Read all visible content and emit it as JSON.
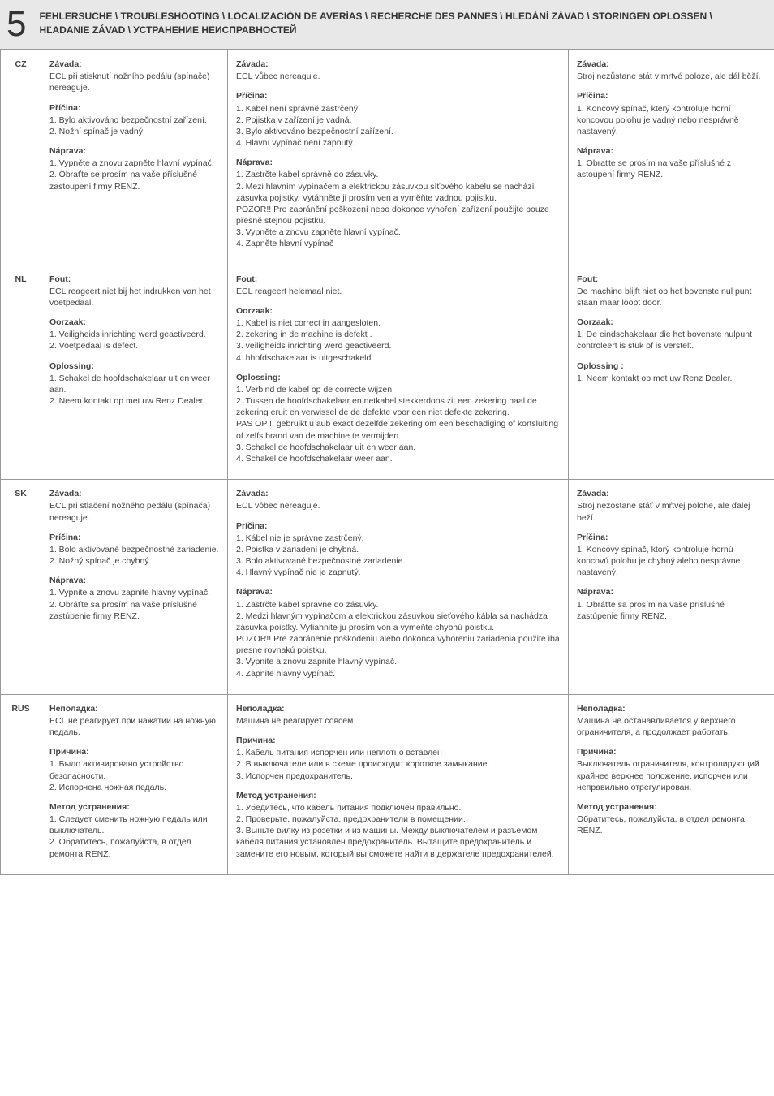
{
  "header": {
    "number": "5",
    "title": "FEHLERSUCHE   \\   TROUBLESHOOTING   \\   LOCALIZACIÓN DE AVERÍAS   \\   RECHERCHE DES PANNES   \\   HLEDÁNÍ ZÁVAD   \\   STORINGEN OPLOSSEN   \\   HĽADANIE ZÁVAD   \\   УСТРАНЕНИЕ НЕИСПРАВНОСТЕЙ"
  },
  "rows": [
    {
      "lang": "CZ",
      "col1": [
        {
          "title": "Závada:",
          "body": "ECL při stisknutí nožního pedálu (spínače) nereaguje."
        },
        {
          "title": "Příčina:",
          "body": "1. Bylo aktivováno bezpečnostní zařízení.\n2. Nožní spínač je vadný."
        },
        {
          "title": "Náprava:",
          "body": "1. Vypněte a znovu zapněte hlavní vypínač.\n2. Obraťte se prosím na vaše příslušné zastoupení firmy RENZ."
        }
      ],
      "col2": [
        {
          "title": "Závada:",
          "body": "ECL vůbec nereaguje."
        },
        {
          "title": "Příčina:",
          "body": "1. Kabel není správně zastrčený.\n2. Pojistka v zařízení je vadná.\n3. Bylo aktivováno bezpečnostní zařízení.\n4. Hlavní vypínač není zapnutý."
        },
        {
          "title": "Náprava:",
          "body": "1. Zastrčte kabel správně do zásuvky.\n2. Mezi hlavním vypínačem a elektrickou zásuvkou síťového kabelu se nachází zásuvka pojistky. Vytáhněte ji prosím ven a vyměňte vadnou pojistku.\nPOZOR!! Pro zabránění poškození nebo dokonce vyhoření zařízení použijte pouze přesně stejnou pojistku.\n3. Vypněte a znovu zapněte hlavní vypínač.\n4. Zapněte hlavní vypínač"
        }
      ],
      "col3": [
        {
          "title": "Závada:",
          "body": "Stroj nezůstane stát v mrtvé poloze, ale dál běží."
        },
        {
          "title": "Příčina:",
          "body": "1. Koncový spínač, který kontroluje horní koncovou polohu je vadný nebo nesprávně nastavený."
        },
        {
          "title": "Náprava:",
          "body": "1. Obraťte se prosím na vaše příslušné z astoupení firmy RENZ."
        }
      ]
    },
    {
      "lang": "NL",
      "col1": [
        {
          "title": "Fout:",
          "body": "ECL reageert niet bij het indrukken van het voetpedaal."
        },
        {
          "title": "Oorzaak:",
          "body": "1. Veiligheids inrichting werd geactiveerd.\n2. Voetpedaal is defect."
        },
        {
          "title": "Oplossing:",
          "body": "1. Schakel de hoofdschakelaar uit en weer aan.\n2. Neem kontakt op met uw Renz Dealer."
        }
      ],
      "col2": [
        {
          "title": "Fout:",
          "body": "ECL reageert helemaal niet."
        },
        {
          "title": "Oorzaak:",
          "body": "1. Kabel is niet correct in aangesloten.\n2. zekering in de machine is defekt .\n3. veiligheids inrichting werd geactiveerd.\n4. hhofdschakelaar is uitgeschakeld."
        },
        {
          "title": "Oplossing:",
          "body": "1. Verbind de kabel op de correcte wijzen.\n2. Tussen de hoofdschakelaar en netkabel stekkerdoos zit een zekering haal de zekering eruit en verwissel de de defekte voor een niet defekte zekering.\nPAS OP !! gebruikt u aub exact dezelfde zekering om een beschadiging of kortsluiting of zelfs brand van de machine te vermijden.\n3. Schakel de hoofdschakelaar uit en weer aan.\n4. Schakel de hoofdschakelaar weer aan."
        }
      ],
      "col3": [
        {
          "title": "Fout:",
          "body": "De machine blijft niet op het bovenste nul punt staan maar loopt door."
        },
        {
          "title": "Oorzaak:",
          "body": "1. De eindschakelaar die het bovenste nulpunt controleert is stuk of is verstelt."
        },
        {
          "title": "Oplossing :",
          "body": "1. Neem kontakt op met uw Renz Dealer."
        }
      ]
    },
    {
      "lang": "SK",
      "col1": [
        {
          "title": "Závada:",
          "body": "ECL pri stlačení nožného pedálu (spínača) nereaguje."
        },
        {
          "title": "Príčina:",
          "body": "1. Bolo aktivované bezpečnostné zariadenie.\n2. Nožný spínač je chybný."
        },
        {
          "title": "Náprava:",
          "body": "1. Vypnite a znovu zapnite hlavný vypínač.\n2. Obráťte sa prosím na vaše príslušné zastúpenie firmy RENZ."
        }
      ],
      "col2": [
        {
          "title": "Závada:",
          "body": "ECL vôbec nereaguje."
        },
        {
          "title": "Príčina:",
          "body": "1. Kábel nie je správne zastrčený.\n2. Poistka v zariadení je chybná.\n3. Bolo aktivované bezpečnostné zariadenie.\n4. Hlavný vypínač nie je zapnutý."
        },
        {
          "title": "Náprava:",
          "body": "1. Zastrčte kábel správne do zásuvky.\n2. Medzi hlavným vypínačom a elektrickou zásuvkou sieťového kábla sa nachádza zásuvka poistky. Vytiahnite ju prosím von a vymeňte chybnú poistku.\nPOZOR!! Pre zabránenie poškodeniu alebo dokonca vyhoreniu zariadenia použite iba presne rovnakú poistku.\n3. Vypnite a znovu zapnite hlavný vypínač.\n4. Zapnite hlavný vypínač."
        }
      ],
      "col3": [
        {
          "title": "Závada:",
          "body": "Stroj nezostane stáť v mŕtvej polohe, ale ďalej beží."
        },
        {
          "title": "Príčina:",
          "body": "1. Koncový spínač, ktorý kontroluje hornú koncovú polohu je chybný alebo nesprávne nastavený."
        },
        {
          "title": "Náprava:",
          "body": "1. Obráťte sa prosím na vaše príslušné zastúpenie firmy RENZ."
        }
      ]
    },
    {
      "lang": "RUS",
      "col1": [
        {
          "title": "Неполадка:",
          "body": "ECL не реагирует при нажатии на ножную педаль."
        },
        {
          "title": "Причина:",
          "body": "1. Было активировано устройство безопасности.\n2. Испорчена ножная педаль."
        },
        {
          "title": "Метод устранения:",
          "body": "1. Следует сменить ножную педаль или выключатель.\n2. Обратитесь, пожалуйста, в отдел ремонта RENZ."
        }
      ],
      "col2": [
        {
          "title": "Неполадка:",
          "body": "Машина не реагирует совсем."
        },
        {
          "title": "Причина:",
          "body": "1. Кабель питания испорчен или неплотно вставлен\n2. В выключателе или в схеме происходит короткое замыкание.\n3. Испорчен предохранитель."
        },
        {
          "title": "Метод устранения:",
          "body": "1. Убедитесь, что кабель питания подключен правильно.\n2. Проверьте, пожалуйста, предохранители в помещении.\n3. Выньте вилку из розетки и из машины. Между выключателем и разъемом кабеля питания установлен предохранитель. Вытащите предохранитель и замените его новым, который вы сможете найти в держателе предохранителей."
        }
      ],
      "col3": [
        {
          "title": "Неполадка:",
          "body": "Машина не останавливается у верхнего ограничителя, а продолжает работать."
        },
        {
          "title": "Причина:",
          "body": "Выключатель ограничителя, контролирующий крайнее верхнее положение, испорчен или неправильно отрегулирован."
        },
        {
          "title": "Метод устранения:",
          "body": "Обратитесь, пожалуйста, в отдел ремонта RENZ."
        }
      ]
    }
  ]
}
